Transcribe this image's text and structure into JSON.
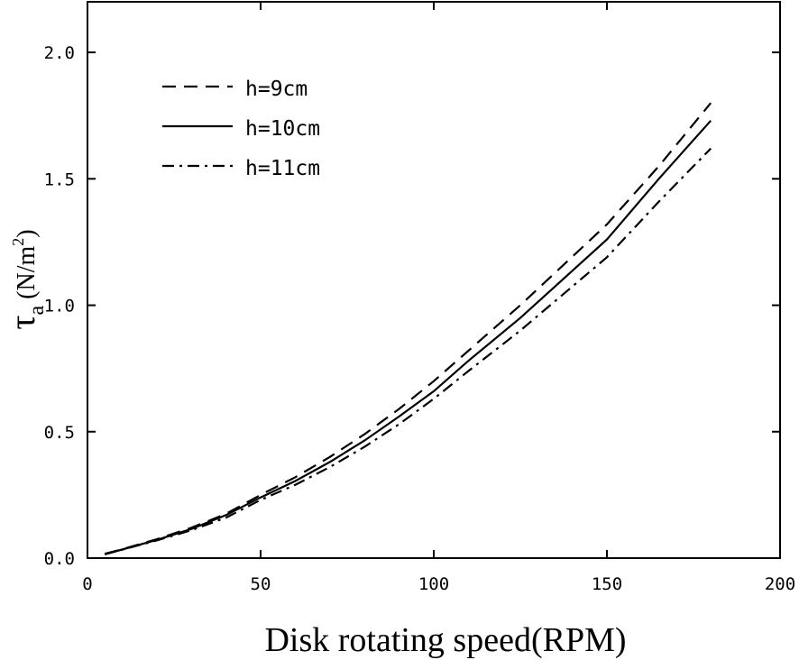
{
  "chart_data": {
    "type": "line",
    "xlabel": "Disk rotating speed(RPM)",
    "ylabel": {
      "symbol": "τ",
      "subscript": "a",
      "unit_open": " (N/m",
      "unit_exp": "2",
      "unit_close": ")"
    },
    "xlim": [
      0,
      200
    ],
    "ylim": [
      0,
      2.2
    ],
    "xticks": [
      0,
      50,
      100,
      150,
      200
    ],
    "xtick_labels": [
      "0",
      "50",
      "100",
      "150",
      "200"
    ],
    "yticks": [
      0,
      0.5,
      1.0,
      1.5,
      2.0
    ],
    "ytick_labels": [
      "0.0",
      "0.5",
      "1.0",
      "1.5",
      "2.0"
    ],
    "grid": false,
    "legend_position": "top-left",
    "series": [
      {
        "name": "h=9cm",
        "style": "dashed",
        "x": [
          5,
          10,
          20,
          30,
          40,
          50,
          60,
          70,
          80,
          90,
          100,
          110,
          125,
          150,
          165,
          180
        ],
        "y": [
          0.017,
          0.035,
          0.075,
          0.12,
          0.175,
          0.25,
          0.32,
          0.4,
          0.49,
          0.59,
          0.7,
          0.82,
          1.0,
          1.32,
          1.55,
          1.8
        ]
      },
      {
        "name": "h=10cm",
        "style": "solid",
        "x": [
          5,
          10,
          20,
          30,
          40,
          50,
          60,
          70,
          80,
          90,
          100,
          110,
          125,
          150,
          165,
          180
        ],
        "y": [
          0.016,
          0.034,
          0.072,
          0.115,
          0.17,
          0.24,
          0.305,
          0.38,
          0.465,
          0.56,
          0.66,
          0.78,
          0.95,
          1.26,
          1.5,
          1.73
        ]
      },
      {
        "name": "h=11cm",
        "style": "dashdot",
        "x": [
          5,
          10,
          20,
          30,
          40,
          50,
          60,
          70,
          80,
          90,
          100,
          110,
          125,
          150,
          165,
          180
        ],
        "y": [
          0.015,
          0.033,
          0.07,
          0.11,
          0.16,
          0.23,
          0.29,
          0.36,
          0.44,
          0.53,
          0.63,
          0.74,
          0.9,
          1.19,
          1.41,
          1.62
        ]
      }
    ]
  }
}
